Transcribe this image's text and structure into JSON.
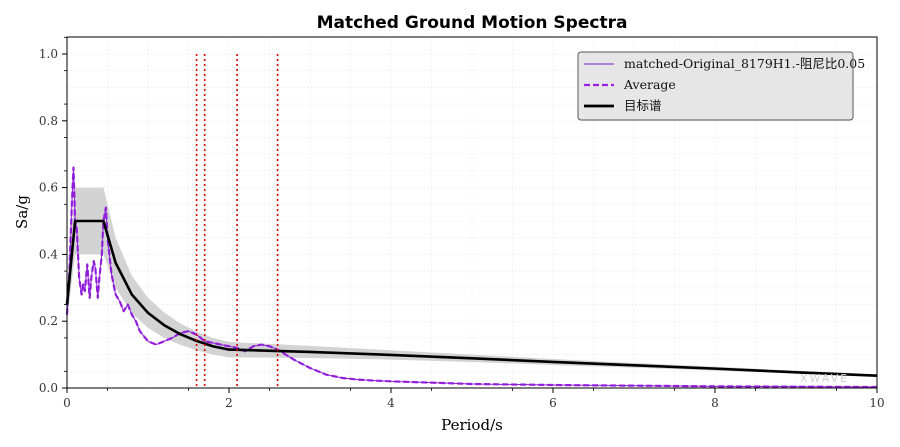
{
  "chart_data": {
    "type": "line",
    "title": "Matched Ground Motion Spectra",
    "xlabel": "Period/s",
    "ylabel": "Sa/g",
    "xlim": [
      0,
      10
    ],
    "ylim": [
      0,
      1.05
    ],
    "xticks": [
      0,
      2,
      4,
      6,
      8,
      10
    ],
    "xtick_labels": [
      "0",
      "2",
      "4",
      "6",
      "8",
      "10"
    ],
    "yticks": [
      0.0,
      0.2,
      0.4,
      0.6,
      0.8,
      1.0
    ],
    "ytick_labels": [
      "0.0",
      "0.2",
      "0.4",
      "0.6",
      "0.8",
      "1.0"
    ],
    "grid": true,
    "legend_position": "top-right",
    "watermark": "XWAVE",
    "series": [
      {
        "name": "matched-Original_8179H1.-阻尼比0.05",
        "style": "solid-thin",
        "color": "#8a1fd6",
        "x": [
          0,
          0.03,
          0.06,
          0.08,
          0.1,
          0.12,
          0.15,
          0.18,
          0.2,
          0.22,
          0.25,
          0.28,
          0.3,
          0.33,
          0.35,
          0.38,
          0.4,
          0.43,
          0.45,
          0.48,
          0.5,
          0.55,
          0.6,
          0.65,
          0.7,
          0.75,
          0.8,
          0.85,
          0.9,
          1.0,
          1.1,
          1.2,
          1.3,
          1.4,
          1.5,
          1.6,
          1.7,
          1.8,
          1.9,
          2.0,
          2.1,
          2.2,
          2.3,
          2.4,
          2.5,
          2.6,
          2.7,
          2.8,
          3.0,
          3.2,
          3.4,
          3.6,
          3.8,
          4.0,
          4.5,
          5.0,
          6.0,
          7.0,
          8.0,
          9.0,
          10.0
        ],
        "y": [
          0.22,
          0.35,
          0.55,
          0.66,
          0.5,
          0.48,
          0.33,
          0.28,
          0.31,
          0.29,
          0.37,
          0.27,
          0.33,
          0.38,
          0.36,
          0.27,
          0.33,
          0.4,
          0.5,
          0.54,
          0.45,
          0.34,
          0.28,
          0.26,
          0.23,
          0.25,
          0.22,
          0.2,
          0.17,
          0.14,
          0.13,
          0.14,
          0.15,
          0.165,
          0.17,
          0.16,
          0.14,
          0.135,
          0.13,
          0.125,
          0.12,
          0.11,
          0.125,
          0.13,
          0.125,
          0.115,
          0.1,
          0.085,
          0.06,
          0.04,
          0.03,
          0.025,
          0.022,
          0.02,
          0.016,
          0.012,
          0.009,
          0.007,
          0.005,
          0.004,
          0.003
        ]
      },
      {
        "name": "Average",
        "style": "dashed",
        "color": "#9b1fe0",
        "x": [
          0,
          0.03,
          0.06,
          0.08,
          0.1,
          0.12,
          0.15,
          0.18,
          0.2,
          0.22,
          0.25,
          0.28,
          0.3,
          0.33,
          0.35,
          0.38,
          0.4,
          0.43,
          0.45,
          0.48,
          0.5,
          0.55,
          0.6,
          0.65,
          0.7,
          0.75,
          0.8,
          0.85,
          0.9,
          1.0,
          1.1,
          1.2,
          1.3,
          1.4,
          1.5,
          1.6,
          1.7,
          1.8,
          1.9,
          2.0,
          2.1,
          2.2,
          2.3,
          2.4,
          2.5,
          2.6,
          2.7,
          2.8,
          3.0,
          3.2,
          3.4,
          3.6,
          3.8,
          4.0,
          4.5,
          5.0,
          6.0,
          7.0,
          8.0,
          9.0,
          10.0
        ],
        "y": [
          0.22,
          0.35,
          0.55,
          0.66,
          0.5,
          0.48,
          0.33,
          0.28,
          0.31,
          0.29,
          0.37,
          0.27,
          0.33,
          0.38,
          0.36,
          0.27,
          0.33,
          0.4,
          0.5,
          0.54,
          0.45,
          0.34,
          0.28,
          0.26,
          0.23,
          0.25,
          0.22,
          0.2,
          0.17,
          0.14,
          0.13,
          0.14,
          0.15,
          0.165,
          0.17,
          0.16,
          0.14,
          0.135,
          0.13,
          0.125,
          0.12,
          0.11,
          0.125,
          0.13,
          0.125,
          0.115,
          0.1,
          0.085,
          0.06,
          0.04,
          0.03,
          0.025,
          0.022,
          0.02,
          0.016,
          0.012,
          0.009,
          0.007,
          0.005,
          0.004,
          0.003
        ]
      },
      {
        "name": "目标谱",
        "style": "solid-thick",
        "color": "#000000",
        "x": [
          0,
          0.1,
          0.45,
          0.6,
          0.8,
          1.0,
          1.2,
          1.4,
          1.6,
          1.8,
          2.0,
          3.0,
          4.0,
          5.0,
          6.0,
          7.0,
          8.0,
          9.0,
          10.0
        ],
        "y": [
          0.25,
          0.5,
          0.5,
          0.375,
          0.28,
          0.225,
          0.188,
          0.161,
          0.141,
          0.125,
          0.115,
          0.108,
          0.099,
          0.089,
          0.078,
          0.068,
          0.058,
          0.047,
          0.037
        ]
      }
    ],
    "tolerance_band": {
      "color": "#d3d3d3",
      "x": [
        0,
        0.1,
        0.45,
        0.6,
        0.8,
        1.0,
        1.2,
        1.4,
        1.6,
        1.8,
        2.0,
        3.0,
        4.0,
        5.0,
        6.0,
        7.0,
        8.0,
        9.0,
        10.0
      ],
      "lower": [
        0.2,
        0.4,
        0.4,
        0.3,
        0.224,
        0.18,
        0.15,
        0.129,
        0.113,
        0.1,
        0.092,
        0.09,
        0.085,
        0.078,
        0.069,
        0.061,
        0.052,
        0.043,
        0.034
      ],
      "upper": [
        0.3,
        0.6,
        0.6,
        0.45,
        0.336,
        0.27,
        0.226,
        0.193,
        0.169,
        0.15,
        0.138,
        0.126,
        0.113,
        0.1,
        0.087,
        0.075,
        0.064,
        0.052,
        0.041
      ]
    },
    "vertical_markers": {
      "color": "#e00000",
      "style": "dotted",
      "x": [
        1.6,
        1.7,
        2.1,
        2.6
      ],
      "y_top": 1.0
    }
  }
}
